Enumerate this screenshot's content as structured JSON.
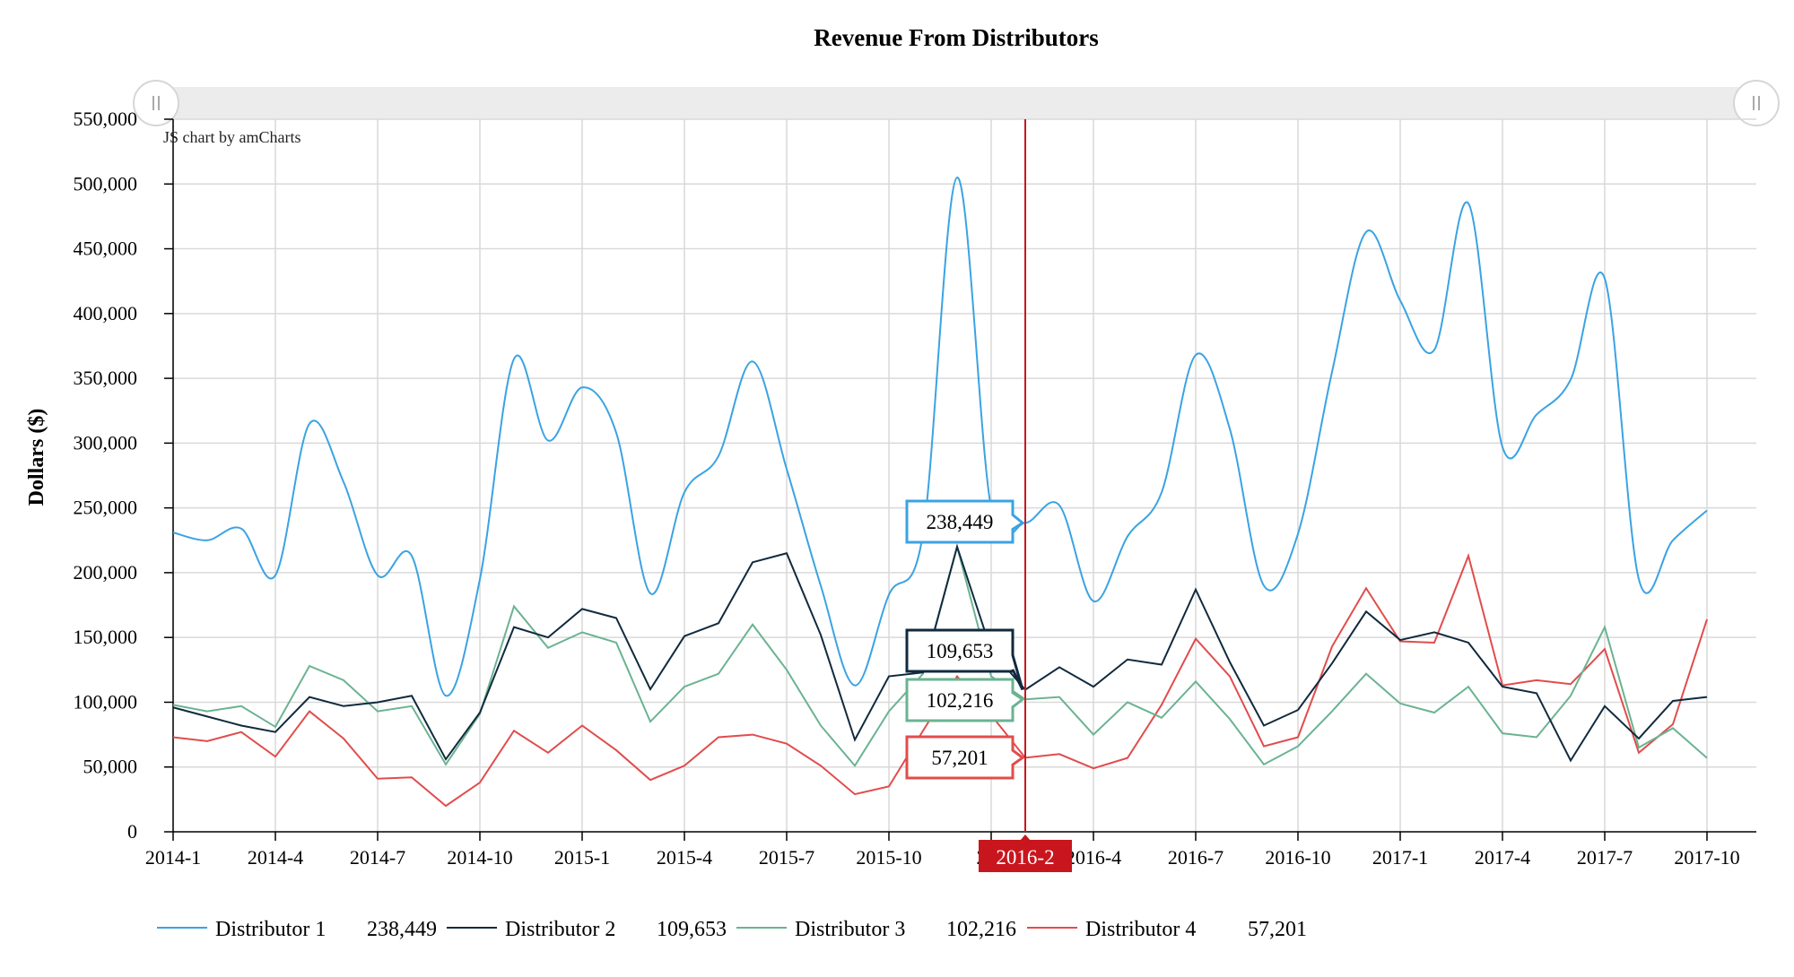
{
  "colors": {
    "distributor_1": "#3aa3e3",
    "distributor_2": "#102a3e",
    "distributor_3": "#6ab391",
    "distributor_4": "#e14c4c",
    "cursor": "#c9161e",
    "grid": "#d9d9d9",
    "scrollbar": "#ececec"
  },
  "watermark": "JS chart by amCharts",
  "cursor_label": "2016-2",
  "legend": [
    {
      "name": "Distributor 1",
      "value": "238,449"
    },
    {
      "name": "Distributor 2",
      "value": "109,653"
    },
    {
      "name": "Distributor 3",
      "value": "102,216"
    },
    {
      "name": "Distributor 4",
      "value": "57,201"
    }
  ],
  "balloons": [
    "238,449",
    "109,653",
    "102,216",
    "57,201"
  ],
  "chart_data": {
    "type": "line",
    "title": "Revenue From Distributors",
    "xlabel": "",
    "ylabel": "Dollars ($)",
    "ylim": [
      0,
      550000
    ],
    "ytick_labels": [
      "0",
      "50,000",
      "100,000",
      "150,000",
      "200,000",
      "250,000",
      "300,000",
      "350,000",
      "400,000",
      "450,000",
      "500,000",
      "550,000"
    ],
    "x_tick_labels": [
      "2014-1",
      "2014-4",
      "2014-7",
      "2014-10",
      "2015-1",
      "2015-4",
      "2015-7",
      "2015-10",
      "201",
      "2016-4",
      "2016-7",
      "2016-10",
      "2017-1",
      "2017-4",
      "2017-7",
      "2017-10"
    ],
    "grid": true,
    "legend_position": "bottom-left",
    "cursor_category": "2016-2",
    "x": [
      "2014-1",
      "2014-2",
      "2014-3",
      "2014-4",
      "2014-5",
      "2014-6",
      "2014-7",
      "2014-8",
      "2014-9",
      "2014-10",
      "2014-11",
      "2014-12",
      "2015-1",
      "2015-2",
      "2015-3",
      "2015-4",
      "2015-5",
      "2015-6",
      "2015-7",
      "2015-8",
      "2015-9",
      "2015-10",
      "2015-11",
      "2015-12",
      "2016-1",
      "2016-2",
      "2016-3",
      "2016-4",
      "2016-5",
      "2016-6",
      "2016-7",
      "2016-8",
      "2016-9",
      "2016-10",
      "2016-11",
      "2016-12",
      "2017-1",
      "2017-2",
      "2017-3",
      "2017-4",
      "2017-5",
      "2017-6",
      "2017-7",
      "2017-8",
      "2017-9",
      "2017-10"
    ],
    "series": [
      {
        "name": "Distributor 1",
        "smooth": true,
        "values": [
          231000,
          225000,
          234000,
          198000,
          315000,
          270000,
          198000,
          213000,
          105000,
          195000,
          365000,
          302000,
          343000,
          308000,
          184000,
          262000,
          290000,
          363000,
          280000,
          190000,
          113000,
          183000,
          230000,
          505000,
          250000,
          238449,
          252000,
          178000,
          228000,
          262000,
          368000,
          311000,
          190000,
          230000,
          355000,
          463000,
          410000,
          372000,
          485000,
          297000,
          322000,
          349000,
          427000,
          195000,
          225000,
          248000
        ]
      },
      {
        "name": "Distributor 2",
        "smooth": false,
        "values": [
          96000,
          89000,
          82000,
          77000,
          104000,
          97000,
          100000,
          105000,
          56000,
          92000,
          158000,
          150000,
          172000,
          165000,
          110000,
          151000,
          161000,
          208000,
          215000,
          152000,
          71000,
          120000,
          123000,
          220000,
          140000,
          109653,
          127000,
          112000,
          133000,
          129000,
          187000,
          131000,
          82000,
          94000,
          130000,
          170000,
          148000,
          154000,
          146000,
          112000,
          107000,
          55000,
          97000,
          72000,
          101000,
          104000
        ]
      },
      {
        "name": "Distributor 3",
        "smooth": false,
        "values": [
          98000,
          93000,
          97000,
          81000,
          128000,
          117000,
          93000,
          97000,
          52000,
          91000,
          174000,
          142000,
          154000,
          146000,
          85000,
          112000,
          122000,
          160000,
          125000,
          82000,
          51000,
          93000,
          122000,
          220000,
          120000,
          102216,
          104000,
          75000,
          100000,
          88000,
          116000,
          87000,
          52000,
          66000,
          93000,
          122000,
          99000,
          92000,
          112000,
          76000,
          73000,
          105000,
          158000,
          65000,
          80000,
          57000
        ]
      },
      {
        "name": "Distributor 4",
        "smooth": false,
        "values": [
          73000,
          70000,
          77000,
          58000,
          93000,
          72000,
          41000,
          42000,
          20000,
          38000,
          78000,
          61000,
          82000,
          63000,
          40000,
          51000,
          73000,
          75000,
          68000,
          51000,
          29000,
          35000,
          78000,
          120000,
          90000,
          57201,
          60000,
          49000,
          57000,
          98000,
          149000,
          120000,
          66000,
          73000,
          143000,
          188000,
          147000,
          146000,
          213000,
          113000,
          117000,
          114000,
          141000,
          61000,
          83000,
          164000
        ]
      }
    ]
  }
}
